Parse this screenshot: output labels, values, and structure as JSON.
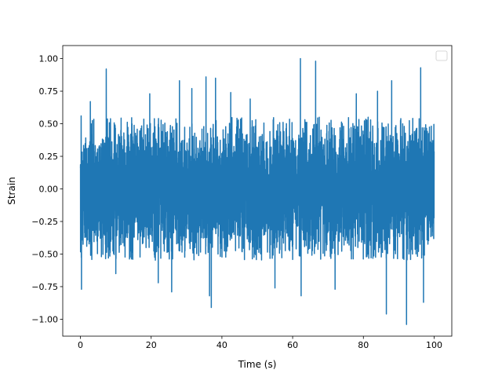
{
  "chart_data": {
    "type": "line",
    "title": "",
    "xlabel": "Time (s)",
    "ylabel": "Strain",
    "xlim": [
      -5,
      105
    ],
    "ylim": [
      -1.13,
      1.1
    ],
    "x_ticks": [
      0,
      20,
      40,
      60,
      80,
      100
    ],
    "x_tick_labels": [
      "0",
      "20",
      "40",
      "60",
      "80",
      "100"
    ],
    "y_ticks": [
      -1.0,
      -0.75,
      -0.5,
      -0.25,
      0.0,
      0.25,
      0.5,
      0.75,
      1.0
    ],
    "y_tick_labels": [
      "−1.00",
      "−0.75",
      "−0.50",
      "−0.25",
      "0.00",
      "0.25",
      "0.50",
      "0.75",
      "1.00"
    ],
    "grid": false,
    "legend": {
      "location": "upper right",
      "entries": []
    },
    "series": [
      {
        "color": "#1f77b4",
        "x_start": 0,
        "x_end": 100,
        "typical_min": -0.55,
        "typical_max": 0.55,
        "peaks": [
          {
            "x": 0.2,
            "y": 0.56
          },
          {
            "x": 0.3,
            "y": -0.77
          },
          {
            "x": 2.8,
            "y": 0.67
          },
          {
            "x": 7.3,
            "y": 0.92
          },
          {
            "x": 10.0,
            "y": -0.65
          },
          {
            "x": 19.6,
            "y": 0.73
          },
          {
            "x": 22.0,
            "y": -0.72
          },
          {
            "x": 25.8,
            "y": -0.79
          },
          {
            "x": 28.0,
            "y": 0.83
          },
          {
            "x": 31.5,
            "y": 0.77
          },
          {
            "x": 35.5,
            "y": 0.86
          },
          {
            "x": 36.5,
            "y": -0.82
          },
          {
            "x": 37.0,
            "y": -0.91
          },
          {
            "x": 38.2,
            "y": 0.85
          },
          {
            "x": 42.5,
            "y": 0.74
          },
          {
            "x": 48.0,
            "y": 0.69
          },
          {
            "x": 55.0,
            "y": -0.76
          },
          {
            "x": 62.2,
            "y": 1.0
          },
          {
            "x": 62.4,
            "y": -0.82
          },
          {
            "x": 66.5,
            "y": 0.98
          },
          {
            "x": 72.0,
            "y": -0.77
          },
          {
            "x": 78.0,
            "y": 0.73
          },
          {
            "x": 84.0,
            "y": 0.75
          },
          {
            "x": 86.5,
            "y": -0.96
          },
          {
            "x": 88.0,
            "y": 0.83
          },
          {
            "x": 92.2,
            "y": -1.04
          },
          {
            "x": 96.2,
            "y": 0.93
          },
          {
            "x": 97.0,
            "y": -0.87
          }
        ]
      }
    ]
  }
}
